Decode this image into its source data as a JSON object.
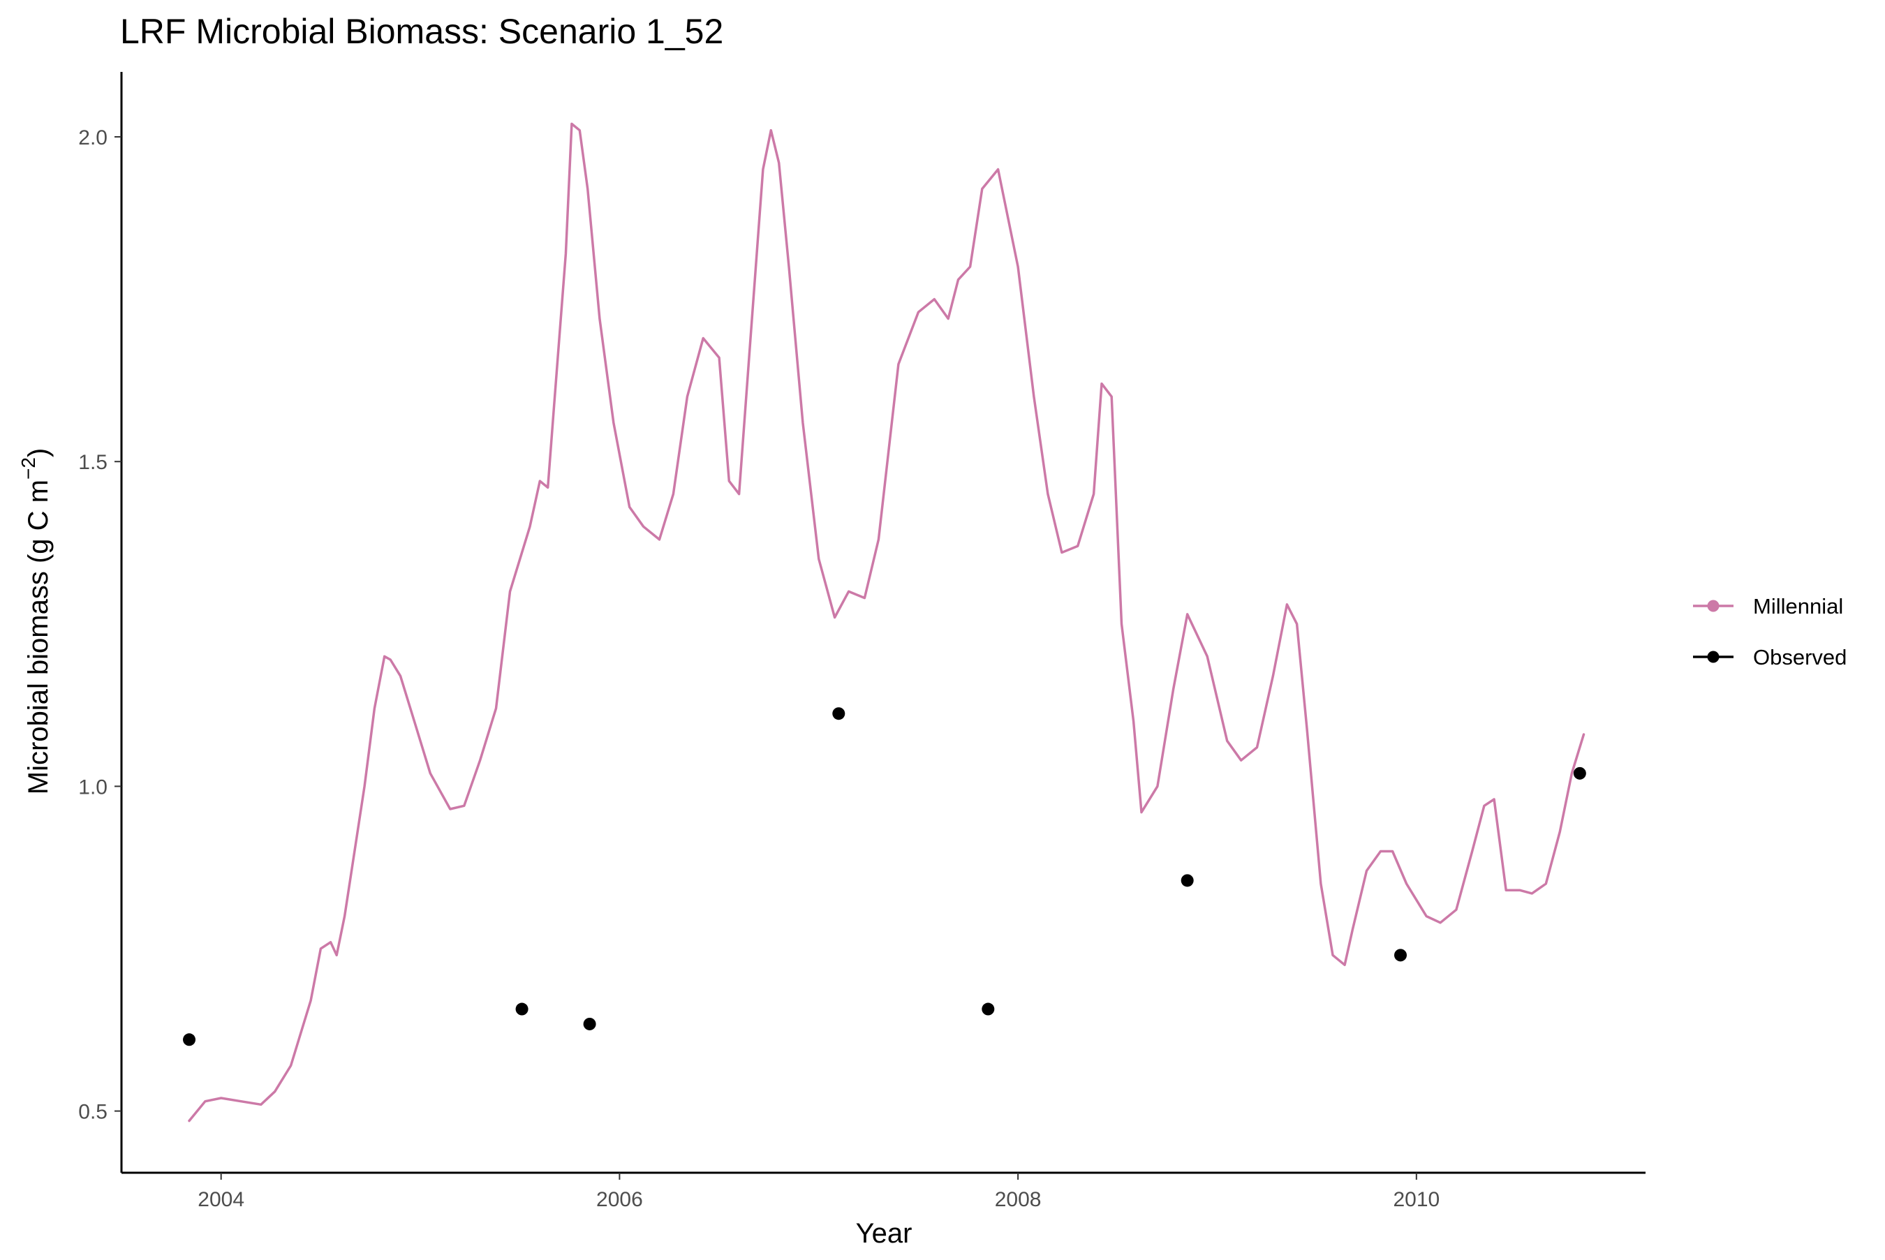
{
  "chart_data": {
    "type": "line",
    "title": "LRF Microbial Biomass: Scenario  1_52",
    "xlabel": "Year",
    "ylabel": {
      "base": "Microbial biomass (g C m",
      "superscript": "−2",
      "close": ")"
    },
    "xlim": [
      2003.5,
      2011.15
    ],
    "ylim": [
      0.405,
      2.1
    ],
    "x_ticks": [
      2004,
      2006,
      2008,
      2010
    ],
    "y_ticks": [
      0.5,
      1.0,
      1.5,
      2.0
    ],
    "x_tick_labels": [
      "2004",
      "2006",
      "2008",
      "2010"
    ],
    "y_tick_labels": [
      "0.5",
      "1.0",
      "1.5",
      "2.0"
    ],
    "grid": false,
    "legend_position": "right",
    "series": [
      {
        "name": "Millennial",
        "kind": "line",
        "color": "#cc79a7",
        "x": [
          2003.84,
          2003.92,
          2004.0,
          2004.1,
          2004.2,
          2004.27,
          2004.35,
          2004.4,
          2004.45,
          2004.5,
          2004.55,
          2004.58,
          2004.62,
          2004.66,
          2004.68,
          2004.72,
          2004.77,
          2004.82,
          2004.85,
          2004.9,
          2004.97,
          2005.05,
          2005.15,
          2005.22,
          2005.3,
          2005.38,
          2005.45,
          2005.55,
          2005.6,
          2005.64,
          2005.67,
          2005.7,
          2005.73,
          2005.76,
          2005.8,
          2005.84,
          2005.9,
          2005.97,
          2006.05,
          2006.12,
          2006.2,
          2006.27,
          2006.34,
          2006.42,
          2006.5,
          2006.55,
          2006.6,
          2006.66,
          2006.72,
          2006.76,
          2006.8,
          2006.85,
          2006.92,
          2007.0,
          2007.08,
          2007.15,
          2007.23,
          2007.3,
          2007.4,
          2007.5,
          2007.58,
          2007.65,
          2007.7,
          2007.76,
          2007.82,
          2007.9,
          2008.0,
          2008.08,
          2008.15,
          2008.22,
          2008.3,
          2008.38,
          2008.42,
          2008.47,
          2008.52,
          2008.58,
          2008.62,
          2008.7,
          2008.78,
          2008.85,
          2008.95,
          2009.05,
          2009.12,
          2009.2,
          2009.28,
          2009.35,
          2009.4,
          2009.45,
          2009.52,
          2009.58,
          2009.64,
          2009.68,
          2009.75,
          2009.82,
          2009.88,
          2009.95,
          2010.05,
          2010.12,
          2010.2,
          2010.28,
          2010.34,
          2010.39,
          2010.45,
          2010.52,
          2010.58,
          2010.65,
          2010.72,
          2010.78,
          2010.84
        ],
        "y": [
          0.485,
          0.515,
          0.52,
          0.515,
          0.51,
          0.53,
          0.57,
          0.62,
          0.67,
          0.75,
          0.76,
          0.74,
          0.8,
          0.88,
          0.92,
          1.0,
          1.12,
          1.2,
          1.195,
          1.17,
          1.1,
          1.02,
          0.965,
          0.97,
          1.04,
          1.12,
          1.3,
          1.4,
          1.47,
          1.46,
          1.58,
          1.7,
          1.82,
          2.02,
          2.01,
          1.92,
          1.72,
          1.56,
          1.43,
          1.4,
          1.38,
          1.45,
          1.6,
          1.69,
          1.66,
          1.47,
          1.45,
          1.7,
          1.95,
          2.01,
          1.96,
          1.8,
          1.56,
          1.35,
          1.26,
          1.3,
          1.29,
          1.38,
          1.65,
          1.73,
          1.75,
          1.72,
          1.78,
          1.8,
          1.92,
          1.95,
          1.8,
          1.6,
          1.45,
          1.36,
          1.37,
          1.45,
          1.62,
          1.6,
          1.25,
          1.1,
          0.96,
          1.0,
          1.15,
          1.265,
          1.2,
          1.07,
          1.04,
          1.06,
          1.17,
          1.28,
          1.25,
          1.09,
          0.85,
          0.74,
          0.725,
          0.78,
          0.87,
          0.9,
          0.9,
          0.85,
          0.8,
          0.79,
          0.81,
          0.9,
          0.97,
          0.98,
          0.84,
          0.84,
          0.835,
          0.85,
          0.93,
          1.02,
          1.08
        ]
      },
      {
        "name": "Observed",
        "kind": "points",
        "color": "#000000",
        "x": [
          2003.84,
          2005.51,
          2005.85,
          2007.1,
          2007.85,
          2008.85,
          2009.92,
          2010.82
        ],
        "y": [
          0.61,
          0.657,
          0.634,
          1.112,
          0.657,
          0.855,
          0.74,
          1.02
        ]
      }
    ]
  }
}
